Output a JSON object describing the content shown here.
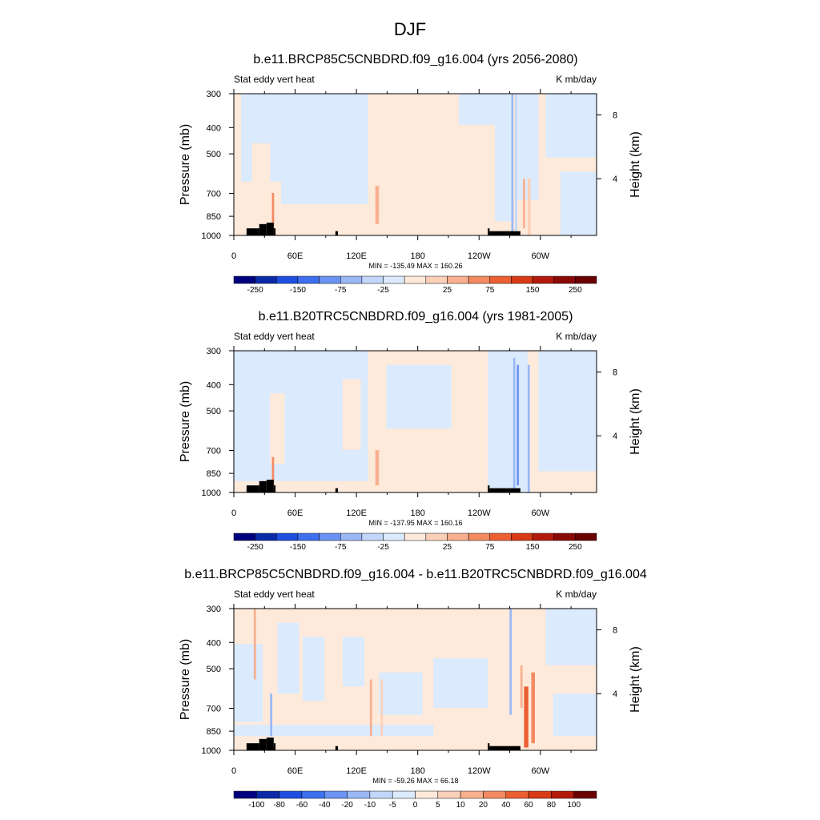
{
  "figure": {
    "title": "DJF"
  },
  "chart_data": [
    {
      "type": "heatmap",
      "title": "b.e11.BRCP85C5CNBDRD.f09_g16.004 (yrs 2056-2080)",
      "left_string": "Stat eddy vert heat",
      "right_string": "K mb/day",
      "ylabel": "Pressure (mb)",
      "y2label": "Height (km)",
      "x_tick_labels": [
        "0",
        "60E",
        "120E",
        "180",
        "120W",
        "60W"
      ],
      "y_tick_labels": [
        "300",
        "400",
        "500",
        "700",
        "850",
        "1000"
      ],
      "y2_tick_labels": [
        "8",
        "4"
      ],
      "stats": "MIN = -135.49  MAX = 160.26",
      "colorbar_labels": [
        "-250",
        "-150",
        "-75",
        "-25",
        "25",
        "75",
        "150",
        "250"
      ],
      "colorbar_colors": [
        "#00007f",
        "#0a2aa8",
        "#1d4fe0",
        "#3d6fef",
        "#6b94f2",
        "#9ab8f6",
        "#c2d7fa",
        "#dbeafd",
        "#feeadb",
        "#fbd0b8",
        "#f8b08f",
        "#f38a62",
        "#ec5f33",
        "#d83a15",
        "#b31a0b",
        "#8a0805",
        "#6b0000"
      ],
      "colorbar_edges_data": [
        -300,
        -250,
        -200,
        -150,
        -100,
        -75,
        -50,
        -25,
        0,
        25,
        50,
        75,
        100,
        150,
        200,
        250,
        300
      ]
    },
    {
      "type": "heatmap",
      "title": "b.e11.B20TRC5CNBDRD.f09_g16.004 (yrs 1981-2005)",
      "left_string": "Stat eddy vert heat",
      "right_string": "K mb/day",
      "ylabel": "Pressure (mb)",
      "y2label": "Height (km)",
      "x_tick_labels": [
        "0",
        "60E",
        "120E",
        "180",
        "120W",
        "60W"
      ],
      "y_tick_labels": [
        "300",
        "400",
        "500",
        "700",
        "850",
        "1000"
      ],
      "y2_tick_labels": [
        "8",
        "4"
      ],
      "stats": "MIN = -137.95  MAX = 160.16",
      "colorbar_labels": [
        "-250",
        "-150",
        "-75",
        "-25",
        "25",
        "75",
        "150",
        "250"
      ],
      "colorbar_colors": [
        "#00007f",
        "#0a2aa8",
        "#1d4fe0",
        "#3d6fef",
        "#6b94f2",
        "#9ab8f6",
        "#c2d7fa",
        "#dbeafd",
        "#feeadb",
        "#fbd0b8",
        "#f8b08f",
        "#f38a62",
        "#ec5f33",
        "#d83a15",
        "#b31a0b",
        "#8a0805",
        "#6b0000"
      ]
    },
    {
      "type": "heatmap",
      "title": "b.e11.BRCP85C5CNBDRD.f09_g16.004 - b.e11.B20TRC5CNBDRD.f09_g16.004",
      "left_string": "Stat eddy vert heat",
      "right_string": "K mb/day",
      "ylabel": "Pressure (mb)",
      "y2label": "Height (km)",
      "x_tick_labels": [
        "0",
        "60E",
        "120E",
        "180",
        "120W",
        "60W"
      ],
      "y_tick_labels": [
        "300",
        "400",
        "500",
        "700",
        "850",
        "1000"
      ],
      "y2_tick_labels": [
        "8",
        "4"
      ],
      "stats": "MIN = -59.26  MAX = 66.18",
      "colorbar_labels": [
        "-100",
        "-80",
        "-60",
        "-40",
        "-20",
        "-10",
        "-5",
        "0",
        "5",
        "10",
        "20",
        "40",
        "60",
        "80",
        "100"
      ],
      "colorbar_colors": [
        "#00007f",
        "#0a2aa8",
        "#1d4fe0",
        "#3d6fef",
        "#6b94f2",
        "#9ab8f6",
        "#c2d7fa",
        "#dbeafd",
        "#feeadb",
        "#fbd0b8",
        "#f8b08f",
        "#f38a62",
        "#ec5f33",
        "#d83a15",
        "#b31a0b",
        "#6b0000"
      ]
    }
  ]
}
